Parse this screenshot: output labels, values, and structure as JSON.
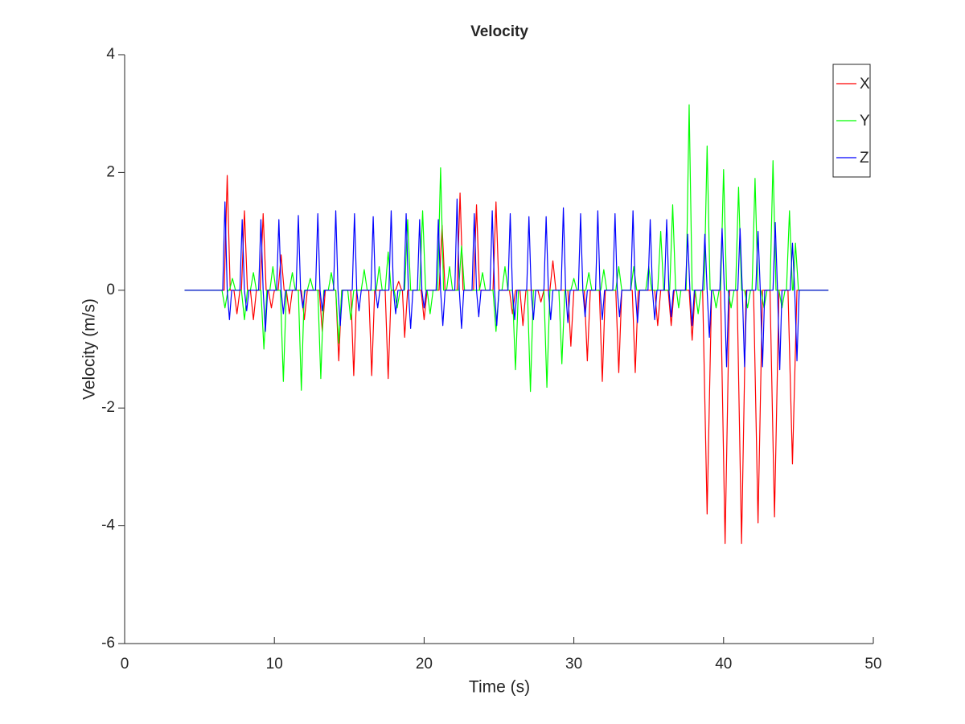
{
  "chart_data": {
    "type": "line",
    "title": "Velocity",
    "x_label": "Time (s)",
    "y_label": "Velocity (m/s)",
    "xlim": [
      0,
      50
    ],
    "xticks": [
      0,
      10,
      20,
      30,
      40,
      50
    ],
    "ylim": [
      -6,
      4
    ],
    "yticks": [
      -6,
      -4,
      -2,
      0,
      2,
      4
    ],
    "grid": false,
    "legend": "top-right",
    "series": [
      {
        "name": "X",
        "color": "#ff0000",
        "x": [
          4,
          6.65,
          6.85,
          7.05,
          7.3,
          7.5,
          7.7,
          7.8,
          8.0,
          8.2,
          8.4,
          8.6,
          8.8,
          9.05,
          9.25,
          9.45,
          9.6,
          9.8,
          10.0,
          10.25,
          10.45,
          10.65,
          10.8,
          11.0,
          11.2,
          11.8,
          12.0,
          12.2,
          13.0,
          13.2,
          13.4,
          14.1,
          14.3,
          14.5,
          15.1,
          15.3,
          15.5,
          16.3,
          16.5,
          16.7,
          17.4,
          17.6,
          17.8,
          18.1,
          18.3,
          18.5,
          18.55,
          18.7,
          18.9,
          19.8,
          20.0,
          20.2,
          21.0,
          21.2,
          21.4,
          22.2,
          22.4,
          22.6,
          23.3,
          23.5,
          23.7,
          24.6,
          24.8,
          25.0,
          25.7,
          25.9,
          26.1,
          26.4,
          26.6,
          26.8,
          27.6,
          27.8,
          28.0,
          28.4,
          28.6,
          28.8,
          29.6,
          29.8,
          30.0,
          30.7,
          30.9,
          31.1,
          31.7,
          31.9,
          32.1,
          32.8,
          33.0,
          33.2,
          33.9,
          34.1,
          34.3,
          35.4,
          35.6,
          35.8,
          36.3,
          36.5,
          36.7,
          37.7,
          37.9,
          38.1,
          38.6,
          38.9,
          39.2,
          39.8,
          40.1,
          40.4,
          40.9,
          41.2,
          41.5,
          42.0,
          42.3,
          42.6,
          43.1,
          43.4,
          43.7,
          44.3,
          44.6,
          44.9,
          47
        ],
        "values": [
          0,
          0,
          1.95,
          0,
          0,
          -0.4,
          0,
          0,
          1.35,
          0,
          0,
          -0.5,
          0,
          0,
          1.3,
          0,
          0,
          -0.3,
          0,
          0,
          0.6,
          0,
          0,
          -0.4,
          0,
          0,
          -0.5,
          0,
          0,
          -0.7,
          0,
          0,
          -1.2,
          0,
          0,
          -1.45,
          0,
          0,
          -1.45,
          0,
          0,
          -1.5,
          0,
          0,
          0.15,
          0,
          0,
          -0.8,
          0,
          0,
          -0.5,
          0,
          0,
          1.1,
          0,
          0,
          1.65,
          0,
          0,
          1.45,
          0,
          0,
          1.5,
          0,
          0,
          -0.4,
          0,
          0,
          -0.6,
          0,
          0,
          -0.2,
          0,
          0,
          0.5,
          0,
          0,
          -0.95,
          0,
          0,
          -1.2,
          0,
          0,
          -1.55,
          0,
          0,
          -1.4,
          0,
          0,
          -1.4,
          0,
          0,
          -0.6,
          0,
          0,
          -0.6,
          0,
          0,
          -0.85,
          0,
          0,
          -3.8,
          0,
          0,
          -4.3,
          0,
          0,
          -4.3,
          0,
          0,
          -3.95,
          0,
          0,
          -3.85,
          0,
          0,
          -2.95,
          0,
          0
        ]
      },
      {
        "name": "Y",
        "color": "#00ff00",
        "x": [
          4,
          6.5,
          6.7,
          6.9,
          7.0,
          7.2,
          7.4,
          7.8,
          8.0,
          8.2,
          8.4,
          8.6,
          8.8,
          9.1,
          9.3,
          9.5,
          9.7,
          9.9,
          10.1,
          10.4,
          10.6,
          10.8,
          11.0,
          11.2,
          11.4,
          11.6,
          11.8,
          12.0,
          12.2,
          12.4,
          12.6,
          12.9,
          13.1,
          13.3,
          13.6,
          13.8,
          14.0,
          14.1,
          14.3,
          14.5,
          14.9,
          15.1,
          15.3,
          15.8,
          16.0,
          16.2,
          16.8,
          17.0,
          17.2,
          17.4,
          17.6,
          17.8,
          18.0,
          18.2,
          18.4,
          18.7,
          18.9,
          19.1,
          19.7,
          19.9,
          20.1,
          20.2,
          20.4,
          20.6,
          20.9,
          21.1,
          21.3,
          21.5,
          21.7,
          21.9,
          22.3,
          22.5,
          22.7,
          23.7,
          23.9,
          24.1,
          24.6,
          24.8,
          25.0,
          25.2,
          25.4,
          25.6,
          25.9,
          26.1,
          26.3,
          26.9,
          27.1,
          27.3,
          28.0,
          28.2,
          28.4,
          29.0,
          29.2,
          29.4,
          29.8,
          30.0,
          30.2,
          30.8,
          31.0,
          31.2,
          31.8,
          32.0,
          32.2,
          32.8,
          33.0,
          33.2,
          33.8,
          34.0,
          34.2,
          34.8,
          35.0,
          35.2,
          35.6,
          35.8,
          36.0,
          36.4,
          36.6,
          36.8,
          36.85,
          37.0,
          37.15,
          37.5,
          37.7,
          37.9,
          38.1,
          38.3,
          38.5,
          38.7,
          38.9,
          39.1,
          39.3,
          39.5,
          39.7,
          39.8,
          40.0,
          40.2,
          40.3,
          40.5,
          40.7,
          40.8,
          41.0,
          41.2,
          41.4,
          41.6,
          41.8,
          41.9,
          42.1,
          42.3,
          42.5,
          42.7,
          42.9,
          43.1,
          43.3,
          43.5,
          43.7,
          43.9,
          44.1,
          44.2,
          44.4,
          44.6,
          44.65,
          44.8,
          45.0,
          47
        ],
        "values": [
          0,
          0,
          -0.3,
          0,
          0,
          0.2,
          0,
          0,
          -0.5,
          0,
          0,
          0.3,
          0,
          0,
          -1.0,
          0,
          0,
          0.4,
          0,
          0,
          -1.55,
          0,
          0,
          0.3,
          0,
          0,
          -1.7,
          0,
          0,
          0.2,
          0,
          0,
          -1.5,
          0,
          0,
          0.3,
          0,
          0,
          -0.9,
          0,
          0,
          -0.5,
          0,
          0,
          0.35,
          0,
          0,
          0.4,
          0,
          0,
          0.65,
          0,
          0,
          -0.3,
          0,
          0,
          1.2,
          0,
          0,
          1.35,
          0,
          0,
          -0.4,
          0,
          0,
          2.08,
          0,
          0,
          0.4,
          0,
          0,
          0.75,
          0,
          0,
          0.3,
          0,
          0,
          -0.7,
          0,
          0,
          0.4,
          0,
          0,
          -1.35,
          0,
          0,
          -1.72,
          0,
          0,
          -1.65,
          0,
          0,
          -1.25,
          0,
          0,
          0.2,
          0,
          0,
          0.3,
          0,
          0,
          0.35,
          0,
          0,
          0.4,
          0,
          0,
          0.4,
          0,
          0,
          0.4,
          0,
          0,
          1.0,
          0,
          0,
          1.45,
          0,
          0,
          -0.3,
          0,
          0,
          3.15,
          0,
          0,
          -0.4,
          0,
          0,
          2.45,
          0,
          0,
          -0.3,
          0,
          0,
          2.05,
          0,
          0,
          -0.3,
          0,
          0,
          1.75,
          0,
          0,
          -0.3,
          0,
          0,
          1.9,
          0,
          0,
          -0.3,
          0,
          0,
          2.2,
          0,
          0,
          -0.3,
          0,
          0,
          1.35,
          0,
          0,
          0.8,
          0,
          0
        ]
      },
      {
        "name": "Z",
        "color": "#0000ff",
        "x": [
          4,
          6.55,
          6.7,
          6.85,
          7.0,
          7.15,
          7.7,
          7.85,
          8.0,
          8.15,
          8.3,
          8.95,
          9.1,
          9.25,
          9.4,
          9.55,
          10.15,
          10.3,
          10.45,
          10.6,
          10.75,
          11.45,
          11.6,
          11.75,
          11.9,
          12.05,
          12.75,
          12.9,
          13.05,
          13.2,
          13.35,
          13.95,
          14.1,
          14.25,
          14.4,
          14.55,
          15.2,
          15.35,
          15.5,
          15.65,
          15.8,
          16.45,
          16.6,
          16.75,
          16.9,
          17.05,
          17.65,
          17.8,
          17.95,
          18.1,
          18.25,
          18.65,
          18.8,
          18.95,
          19.1,
          19.25,
          19.55,
          19.7,
          19.85,
          20.0,
          20.15,
          20.8,
          20.95,
          21.1,
          21.25,
          21.4,
          22.05,
          22.2,
          22.35,
          22.5,
          22.65,
          23.2,
          23.35,
          23.5,
          23.65,
          23.8,
          24.4,
          24.55,
          24.7,
          24.85,
          25.0,
          25.6,
          25.75,
          25.9,
          26.05,
          26.2,
          26.85,
          27.0,
          27.15,
          27.3,
          27.45,
          28.0,
          28.15,
          28.3,
          28.45,
          28.6,
          29.15,
          29.3,
          29.45,
          29.6,
          29.75,
          30.3,
          30.45,
          30.6,
          30.75,
          30.9,
          31.45,
          31.6,
          31.75,
          31.9,
          32.05,
          32.6,
          32.75,
          32.9,
          33.05,
          33.2,
          33.8,
          33.95,
          34.1,
          34.25,
          34.4,
          34.95,
          35.1,
          35.25,
          35.4,
          35.55,
          36.05,
          36.2,
          36.35,
          36.5,
          36.65,
          37.45,
          37.6,
          37.75,
          37.9,
          38.05,
          38.6,
          38.75,
          38.9,
          39.05,
          39.2,
          39.75,
          39.9,
          40.05,
          40.2,
          40.35,
          40.95,
          41.1,
          41.25,
          41.4,
          41.55,
          42.15,
          42.3,
          42.45,
          42.6,
          42.75,
          43.3,
          43.45,
          43.6,
          43.75,
          43.9,
          44.45,
          44.6,
          44.75,
          44.9,
          45.05,
          47
        ],
        "values": [
          0,
          0,
          1.5,
          0,
          -0.5,
          0,
          0,
          1.2,
          0,
          -0.35,
          0,
          0,
          1.2,
          0,
          -0.7,
          0,
          0,
          1.2,
          0,
          -0.4,
          0,
          0,
          1.27,
          0,
          -0.3,
          0,
          0,
          1.3,
          0,
          -0.35,
          0,
          0,
          1.35,
          0,
          -0.6,
          0,
          0,
          1.3,
          0,
          -0.35,
          0,
          0,
          1.25,
          0,
          -0.3,
          0,
          0,
          1.35,
          0,
          -0.4,
          0,
          0,
          1.3,
          0,
          -0.65,
          0,
          0,
          1.2,
          0,
          -0.3,
          0,
          0,
          1.2,
          0,
          -0.6,
          0,
          0,
          1.55,
          0,
          -0.65,
          0,
          0,
          1.3,
          0,
          -0.45,
          0,
          0,
          1.35,
          0,
          -0.6,
          0,
          0,
          1.3,
          0,
          -0.5,
          0,
          0,
          1.25,
          0,
          -0.5,
          0,
          0,
          1.25,
          0,
          -0.5,
          0,
          0,
          1.4,
          0,
          -0.55,
          0,
          0,
          1.3,
          0,
          -0.45,
          0,
          0,
          1.35,
          0,
          -0.5,
          0,
          0,
          1.3,
          0,
          -0.45,
          0,
          0,
          1.35,
          0,
          -0.55,
          0,
          0,
          1.2,
          0,
          -0.5,
          0,
          0,
          1.2,
          0,
          -0.45,
          0,
          0,
          0.95,
          0,
          -0.6,
          0,
          0,
          0.95,
          0,
          -0.8,
          0,
          0,
          1.05,
          0,
          -1.3,
          0,
          0,
          1.05,
          0,
          -1.3,
          0,
          0,
          1.0,
          0,
          -1.3,
          0,
          0,
          1.15,
          0,
          -1.35,
          0,
          0,
          0.8,
          0,
          -1.2,
          0,
          0
        ]
      }
    ]
  }
}
